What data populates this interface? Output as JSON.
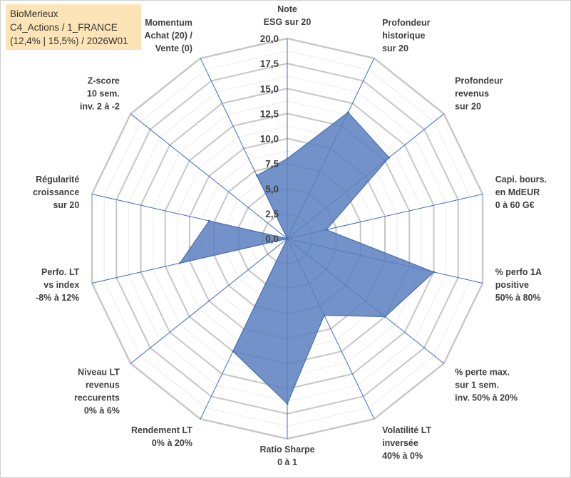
{
  "header": {
    "line1": "BioMerieux",
    "line2": "C4_Actions / 1_FRANCE",
    "line3": "(12,4% | 15,5%) / 2026W01"
  },
  "chart_data": {
    "type": "radar",
    "title": "BioMerieux",
    "rmax": 20,
    "ticks": [
      "0,0",
      "2,5",
      "5,0",
      "7,5",
      "10,0",
      "12,5",
      "15,0",
      "17,5",
      "20,0"
    ],
    "axes": [
      {
        "label": [
          "Note",
          "ESG sur 20"
        ],
        "value": 8.0
      },
      {
        "label": [
          "Profondeur",
          "historique",
          "sur 20"
        ],
        "value": 14.0
      },
      {
        "label": [
          "Profondeur",
          "revenus",
          "sur 20"
        ],
        "value": 13.0
      },
      {
        "label": [
          "Capi. bours.",
          "en MdEUR",
          "0 à 60 G€"
        ],
        "value": 4.0
      },
      {
        "label": [
          "% perfo 1A",
          "positive",
          "50% à 80%"
        ],
        "value": 15.0
      },
      {
        "label": [
          "% perte max.",
          "sur 1 sem.",
          "inv. 50% à 20%"
        ],
        "value": 12.5
      },
      {
        "label": [
          "Volatilité LT",
          "inversée",
          "40% à 0%"
        ],
        "value": 8.5
      },
      {
        "label": [
          "Ratio Sharpe",
          "0 à 1"
        ],
        "value": 16.5
      },
      {
        "label": [
          "Rendement LT",
          "0% à 20%"
        ],
        "value": 12.5
      },
      {
        "label": [
          "Niveau LT",
          "revenus",
          "reccurents",
          "0% à 6%"
        ],
        "value": 0.0
      },
      {
        "label": [
          "Perfo. LT",
          "vs index",
          "-8% à 12%"
        ],
        "value": 11.0
      },
      {
        "label": [
          "Régularité",
          "croissance",
          "sur 20"
        ],
        "value": 8.0
      },
      {
        "label": [
          "Z-score",
          "10 sem.",
          "inv. 2 à -2"
        ],
        "value": 0.0
      },
      {
        "label": [
          "Momentum",
          "Achat (20) /",
          "Vente (0)"
        ],
        "value": 7.0
      }
    ],
    "series": [
      {
        "name": "BioMerieux",
        "color": "#5b7fbf"
      }
    ]
  }
}
